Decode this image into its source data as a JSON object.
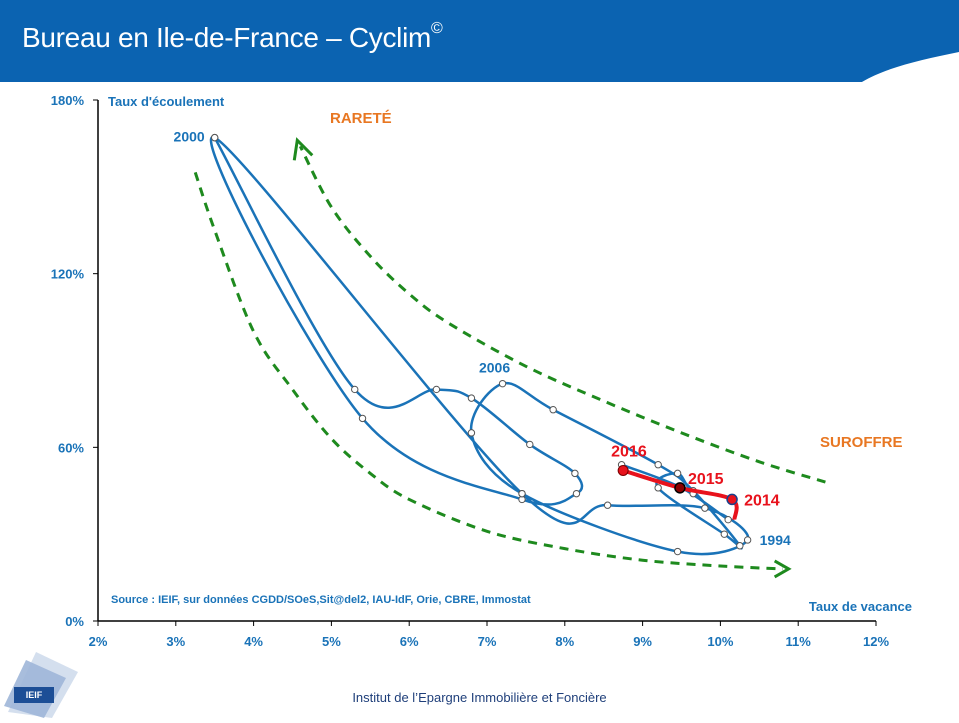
{
  "header": {
    "title": "Bureau en Ile-de-France – Cyclim",
    "title_mark": "©"
  },
  "footer": {
    "institute": "Institut de l’Epargne Immobilière et Foncière",
    "logo_text": "IEIF"
  },
  "colors": {
    "banner": "#0b63b1",
    "series": "#1a73b8",
    "highlight": "#e8121c",
    "envelope": "#1e8a1e",
    "label_orange": "#e87722",
    "axis_text": "#1a73b8"
  },
  "chart_data": {
    "type": "line",
    "title": "",
    "xlabel": "Taux de vacance",
    "ylabel": "Taux d'écoulement",
    "xlim": [
      2,
      12
    ],
    "ylim": [
      0,
      180
    ],
    "x_ticks": [
      "2%",
      "3%",
      "4%",
      "5%",
      "6%",
      "7%",
      "8%",
      "9%",
      "10%",
      "11%",
      "12%"
    ],
    "y_ticks": [
      "0%",
      "60%",
      "120%",
      "180%"
    ],
    "series": [
      {
        "x": [
          3.5,
          5.3,
          6.35,
          6.8,
          7.55,
          8.13,
          8.15,
          7.45,
          5.4,
          3.5,
          7.45,
          8.55,
          9.8,
          10.35,
          9.45,
          7.45,
          6.8,
          7.2,
          7.85,
          9.2,
          9.65,
          10.25,
          10.05,
          9.2,
          9.45,
          9.65,
          10.1,
          9.5,
          8.73
        ],
        "y": [
          167,
          80,
          80,
          77,
          61,
          51,
          44,
          42,
          70,
          167,
          44,
          40,
          39,
          28,
          24,
          44,
          65,
          82,
          73,
          54,
          45,
          26,
          30,
          46,
          51,
          44,
          35,
          46,
          54
        ]
      },
      {
        "x": [
          8.75,
          9.48,
          10.15,
          10.18
        ],
        "y": [
          52,
          46,
          42,
          35
        ]
      }
    ],
    "data_labels": [
      {
        "text": "2000",
        "x": 3.5,
        "y": 167
      },
      {
        "text": "2006",
        "x": 7.2,
        "y": 82
      },
      {
        "text": "1994",
        "x": 10.35,
        "y": 28
      },
      {
        "text": "2016",
        "x": 8.75,
        "y": 52
      },
      {
        "text": "2015",
        "x": 9.48,
        "y": 46
      },
      {
        "text": "2014",
        "x": 10.15,
        "y": 42
      }
    ],
    "annotations": {
      "rarete": "RARETÉ",
      "suroffre": "SUROFFRE",
      "source": "Source : IEIF, sur données CGDD/SOeS,Sit@del2, IAU-IdF, Orie, CBRE, Immostat"
    },
    "envelope_upper": {
      "x": [
        11.35,
        10.5,
        9.5,
        8.5,
        7.5,
        6.5,
        6.0,
        5.5,
        5.0,
        4.6
      ],
      "y": [
        48,
        55,
        65,
        76,
        88,
        103,
        113,
        126,
        143,
        164
      ]
    },
    "envelope_lower": {
      "x": [
        3.25,
        3.5,
        4.0,
        4.5,
        5.0,
        5.5,
        6.0,
        7.0,
        8.0,
        9.0,
        10.0,
        10.8
      ],
      "y": [
        155,
        135,
        100,
        80,
        63,
        51,
        42,
        31,
        25,
        21,
        19,
        18
      ]
    },
    "grid": false
  }
}
